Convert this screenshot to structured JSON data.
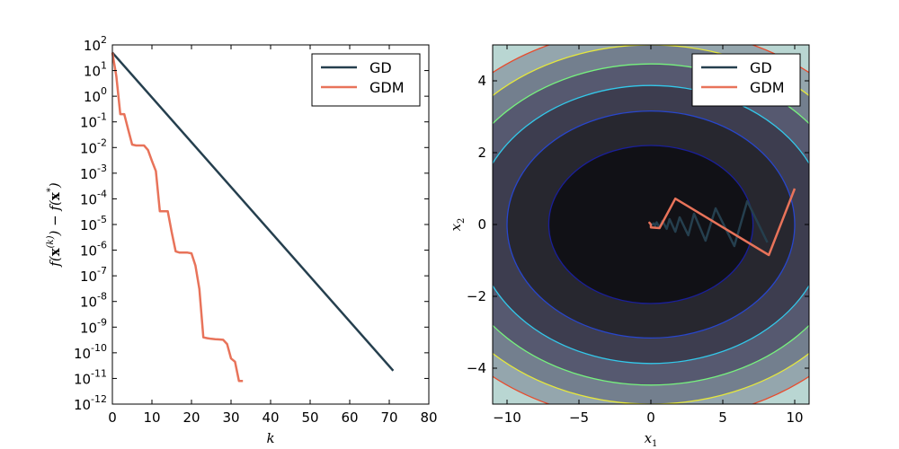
{
  "chart_data": [
    {
      "type": "line",
      "xlabel": "k",
      "ylabel": "f(x^(k)) − f(x*)",
      "xlim": [
        0,
        80
      ],
      "ylim": [
        1e-12,
        100
      ],
      "yscale": "log",
      "xticks": [
        "0",
        "10",
        "20",
        "30",
        "40",
        "50",
        "60",
        "70",
        "80"
      ],
      "yticks": [
        {
          "base": "10",
          "exp": "2"
        },
        {
          "base": "10",
          "exp": "1"
        },
        {
          "base": "10",
          "exp": "0"
        },
        {
          "base": "10",
          "exp": "-1"
        },
        {
          "base": "10",
          "exp": "-2"
        },
        {
          "base": "10",
          "exp": "-3"
        },
        {
          "base": "10",
          "exp": "-4"
        },
        {
          "base": "10",
          "exp": "-5"
        },
        {
          "base": "10",
          "exp": "-6"
        },
        {
          "base": "10",
          "exp": "-7"
        },
        {
          "base": "10",
          "exp": "-8"
        },
        {
          "base": "10",
          "exp": "-9"
        },
        {
          "base": "10",
          "exp": "-10"
        },
        {
          "base": "10",
          "exp": "-11"
        },
        {
          "base": "10",
          "exp": "-12"
        }
      ],
      "legend": {
        "position": "top-right",
        "entries": [
          "GD",
          "GDM"
        ]
      },
      "series": [
        {
          "name": "GD",
          "color": "#253f4e",
          "x": [
            0,
            71
          ],
          "y": [
            50,
            2e-11
          ]
        },
        {
          "name": "GDM",
          "color": "#e8735a",
          "x": [
            0,
            1,
            2,
            3,
            4,
            5,
            6,
            7,
            8,
            9,
            10,
            11,
            12,
            13,
            14,
            15,
            16,
            17,
            18,
            19,
            20,
            21,
            22,
            23,
            24,
            25,
            26,
            27,
            28,
            29,
            30,
            31,
            32,
            33
          ],
          "y": [
            50,
            6,
            0.2,
            0.2,
            0.05,
            0.013,
            0.012,
            0.012,
            0.012,
            0.008,
            0.003,
            0.0012,
            3.3e-05,
            3.3e-05,
            3.3e-05,
            5e-06,
            9e-07,
            8e-07,
            8e-07,
            8e-07,
            7.5e-07,
            2.5e-07,
            3e-08,
            4e-10,
            3.7e-10,
            3.5e-10,
            3.4e-10,
            3.3e-10,
            3.2e-10,
            2.2e-10,
            6e-11,
            4.5e-11,
            8e-12,
            8e-12
          ]
        }
      ]
    },
    {
      "type": "contour",
      "xlabel": "x1",
      "ylabel": "x2",
      "xlim": [
        -11,
        11
      ],
      "ylim": [
        -5,
        5
      ],
      "xticks": [
        "−10",
        "−5",
        "0",
        "5",
        "10"
      ],
      "yticks": [
        "4",
        "2",
        "0",
        "−2",
        "−4"
      ],
      "contour_levels": [
        {
          "rx": 7.1,
          "ry": 2.2,
          "fill": "#111116",
          "stroke": "#1a1f9a"
        },
        {
          "rx": 10.0,
          "ry": 3.16,
          "fill": "#27272f",
          "stroke": "#2846cc"
        },
        {
          "rx": 12.25,
          "ry": 3.87,
          "fill": "#3d3d4f",
          "stroke": "#33c8ea"
        },
        {
          "rx": 14.14,
          "ry": 4.47,
          "fill": "#565970",
          "stroke": "#77f27e"
        },
        {
          "rx": 15.8,
          "ry": 5.0,
          "fill": "#737f8e",
          "stroke": "#e6e83c"
        },
        {
          "rx": 17.3,
          "ry": 5.48,
          "fill": "#94a6ad",
          "stroke": "#e84b2c"
        }
      ],
      "outer_fill": "#b9d6d2",
      "legend": {
        "position": "top-right",
        "entries": [
          "GD",
          "GDM"
        ]
      },
      "series": [
        {
          "name": "GD",
          "color": "#253f4e",
          "x": [
            8.1,
            6.7,
            5.8,
            4.5,
            3.8,
            3.0,
            2.6,
            2.0,
            1.7,
            1.3,
            1.1,
            0.8,
            0.6,
            0.4,
            0.3,
            0.2,
            0.1,
            0.0
          ],
          "y": [
            -0.5,
            0.65,
            -0.6,
            0.45,
            -0.45,
            0.3,
            -0.3,
            0.2,
            -0.2,
            0.15,
            -0.12,
            0.1,
            -0.08,
            0.06,
            -0.04,
            0.03,
            0.0,
            0.0
          ]
        },
        {
          "name": "GDM",
          "color": "#e8735a",
          "x": [
            10.0,
            8.2,
            1.7,
            0.6,
            0.0,
            0.0,
            -0.1,
            0.0
          ],
          "y": [
            1.0,
            -0.85,
            0.72,
            -0.1,
            -0.08,
            0.0,
            0.05,
            0.0
          ]
        }
      ]
    }
  ]
}
